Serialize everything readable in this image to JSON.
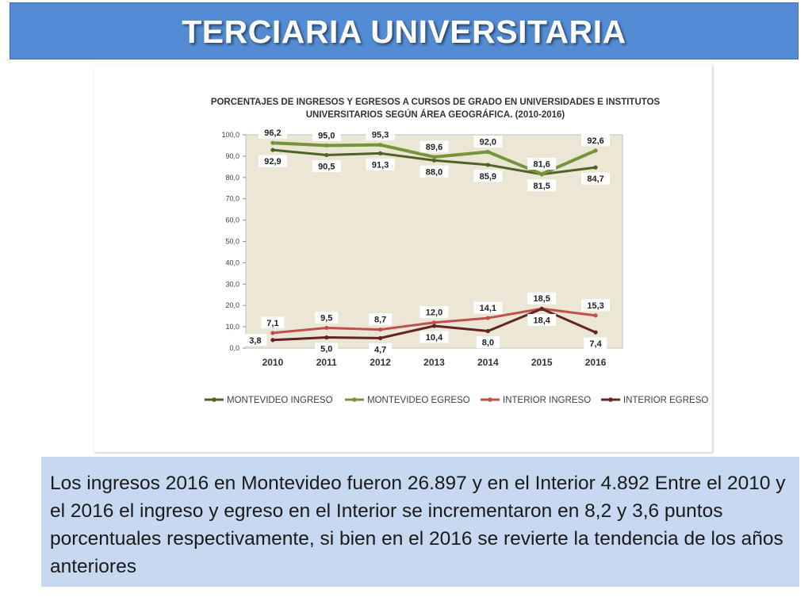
{
  "slide": {
    "title": "TERCIARIA UNIVERSITARIA",
    "body": "Los ingresos 2016 en Montevideo fueron 26.897 y en el Interior 4.892 Entre el 2010 y el 2016 el ingreso y egreso en el Interior se incrementaron en 8,2 y 3,6 puntos porcentuales respectivamente, si bien en el 2016 se revierte la tendencia de los años anteriores"
  },
  "colors": {
    "title_bg": "#538cd5",
    "text_box_bg": "#c6d9f1",
    "plot_bg": "#ebe7d4"
  },
  "chart_data": {
    "type": "line",
    "title_line1": "PORCENTAJES DE INGRESOS Y EGRESOS A CURSOS DE GRADO EN UNIVERSIDADES E INSTITUTOS",
    "title_line2": "UNIVERSITARIOS  SEGÚN ÁREA GEOGRÁFICA. (2010-2016)",
    "x": [
      "2010",
      "2011",
      "2012",
      "2013",
      "2014",
      "2015",
      "2016"
    ],
    "ylim": [
      0,
      100
    ],
    "yticks": [
      "0,0",
      "10,0",
      "20,0",
      "30,0",
      "40,0",
      "50,0",
      "60,0",
      "70,0",
      "80,0",
      "90,0",
      "100,0"
    ],
    "grid": false,
    "legend_position": "bottom",
    "series": [
      {
        "name": "MONTEVIDEO INGRESO",
        "color": "#4f6228",
        "values": [
          92.9,
          90.5,
          91.3,
          88.0,
          85.9,
          81.5,
          84.7
        ],
        "labels": [
          "92,9",
          "90,5",
          "91,3",
          "88,0",
          "85,9",
          "81,5",
          "84,7"
        ],
        "label_pos": [
          "below",
          "below",
          "below",
          "below",
          "below",
          "below",
          "below"
        ]
      },
      {
        "name": "MONTEVIDEO EGRESO",
        "color": "#77933c",
        "values": [
          96.2,
          95.0,
          95.3,
          89.6,
          92.0,
          81.6,
          92.6
        ],
        "labels": [
          "96,2",
          "95,0",
          "95,3",
          "89,6",
          "92,0",
          "81,6",
          "92,6"
        ],
        "label_pos": [
          "above",
          "above",
          "above",
          "above",
          "above",
          "above",
          "above"
        ]
      },
      {
        "name": "INTERIOR INGRESO",
        "color": "#c0504d",
        "values": [
          7.1,
          9.5,
          8.7,
          12.0,
          14.1,
          18.5,
          15.3
        ],
        "labels": [
          "7,1",
          "9,5",
          "8,7",
          "12,0",
          "14,1",
          "18,5",
          "15,3"
        ],
        "label_pos": [
          "above",
          "above",
          "above",
          "above",
          "above",
          "above",
          "above"
        ]
      },
      {
        "name": "INTERIOR EGRESO",
        "color": "#632523",
        "values": [
          3.8,
          5.0,
          4.7,
          10.4,
          8.0,
          18.4,
          7.4
        ],
        "labels": [
          "3,8",
          "5,0",
          "4,7",
          "10,4",
          "8,0",
          "18,4",
          "7,4"
        ],
        "label_pos": [
          "left",
          "below",
          "below",
          "below",
          "below",
          "below",
          "below"
        ]
      }
    ]
  }
}
